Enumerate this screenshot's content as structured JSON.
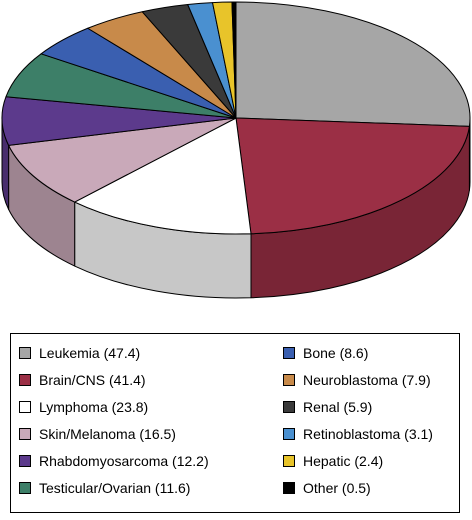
{
  "chart_data": {
    "type": "pie",
    "style": "3d",
    "title": "",
    "categories": [
      "Leukemia",
      "Brain/CNS",
      "Lymphoma",
      "Skin/Melanoma",
      "Rhabdomyosarcoma",
      "Testicular/Ovarian",
      "Bone",
      "Neuroblastoma",
      "Renal",
      "Retinoblastoma",
      "Hepatic",
      "Other"
    ],
    "values": [
      47.4,
      41.4,
      23.8,
      16.5,
      12.2,
      11.6,
      8.6,
      7.9,
      5.9,
      3.1,
      2.4,
      0.5
    ],
    "colors": [
      "#a6a6a6",
      "#9b2f45",
      "#ffffff",
      "#c9a9b9",
      "#5c3a8c",
      "#3d7f68",
      "#3a5fb0",
      "#c88a4a",
      "#3a3a3a",
      "#4a90d0",
      "#e8c42a",
      "#000000"
    ],
    "legend_position": "bottom",
    "legend": {
      "entries": [
        {
          "label": "Leukemia (47.4)",
          "color": "#a6a6a6"
        },
        {
          "label": "Brain/CNS (41.4)",
          "color": "#9b2f45"
        },
        {
          "label": "Lymphoma (23.8)",
          "color": "#ffffff"
        },
        {
          "label": "Skin/Melanoma (16.5)",
          "color": "#c9a9b9"
        },
        {
          "label": "Rhabdomyosarcoma (12.2)",
          "color": "#5c3a8c"
        },
        {
          "label": "Testicular/Ovarian (11.6)",
          "color": "#3d7f68"
        },
        {
          "label": "Bone (8.6)",
          "color": "#3a5fb0"
        },
        {
          "label": "Neuroblastoma (7.9)",
          "color": "#c88a4a"
        },
        {
          "label": "Renal (5.9)",
          "color": "#3a3a3a"
        },
        {
          "label": "Retinoblastoma (3.1)",
          "color": "#4a90d0"
        },
        {
          "label": "Hepatic (2.4)",
          "color": "#e8c42a"
        },
        {
          "label": "Other (0.5)",
          "color": "#000000"
        }
      ]
    }
  }
}
